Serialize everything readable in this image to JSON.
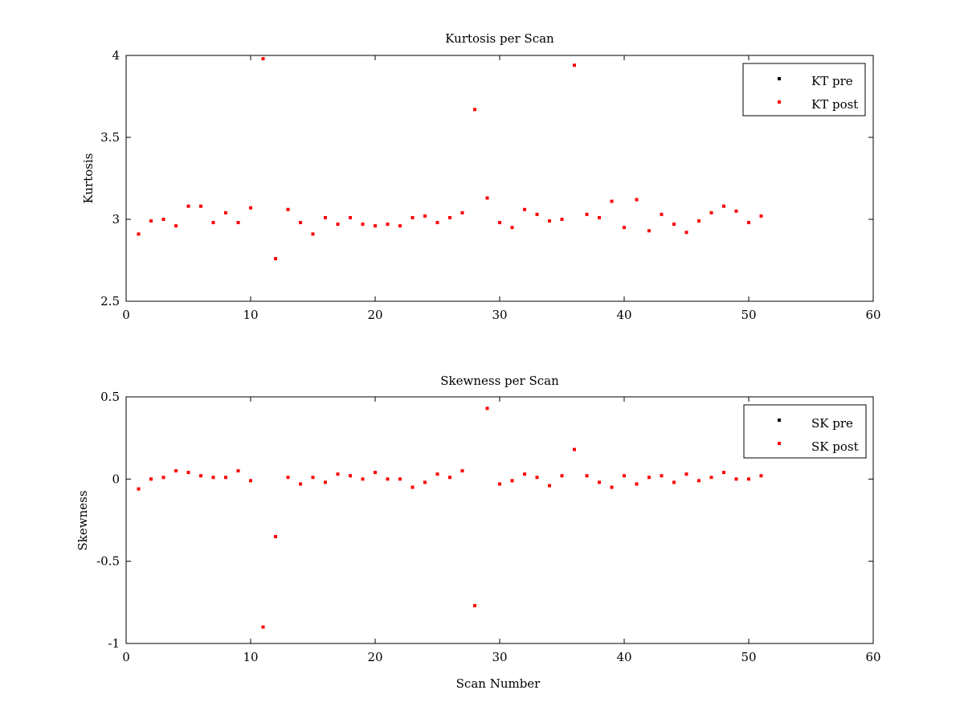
{
  "chart_data": [
    {
      "type": "scatter",
      "title": "Kurtosis per Scan",
      "xlabel": "",
      "ylabel": "Kurtosis",
      "xlim": [
        0,
        60
      ],
      "ylim": [
        2.5,
        4
      ],
      "xticks": [
        0,
        10,
        20,
        30,
        40,
        50,
        60
      ],
      "yticks": [
        2.5,
        3,
        3.5,
        4
      ],
      "xtick_labels": [
        "0",
        "10",
        "20",
        "30",
        "40",
        "50",
        "60"
      ],
      "ytick_labels": [
        "2.5",
        "3",
        "3.5",
        "4"
      ],
      "grid": false,
      "legend_position": "top-right",
      "series": [
        {
          "name": "KT pre",
          "color": "#000000",
          "x": [],
          "y": []
        },
        {
          "name": "KT post",
          "color": "#ff0000",
          "x": [
            1,
            2,
            3,
            4,
            5,
            6,
            7,
            8,
            9,
            10,
            11,
            12,
            13,
            14,
            15,
            16,
            17,
            18,
            19,
            20,
            21,
            22,
            23,
            24,
            25,
            26,
            27,
            28,
            29,
            30,
            31,
            32,
            33,
            34,
            35,
            36,
            37,
            38,
            39,
            40,
            41,
            42,
            43,
            44,
            45,
            46,
            47,
            48,
            49,
            50,
            51
          ],
          "y": [
            2.91,
            2.99,
            3.0,
            2.96,
            3.08,
            3.08,
            2.98,
            3.04,
            2.98,
            3.07,
            3.98,
            2.76,
            3.06,
            2.98,
            2.91,
            3.01,
            2.97,
            3.01,
            2.97,
            2.96,
            2.97,
            2.96,
            3.01,
            3.02,
            2.98,
            3.01,
            3.04,
            3.67,
            3.13,
            2.98,
            2.95,
            3.06,
            3.03,
            2.99,
            3.0,
            3.94,
            3.03,
            3.01,
            3.11,
            2.95,
            3.12,
            2.93,
            3.03,
            2.97,
            2.92,
            2.99,
            3.04,
            3.08,
            3.05,
            2.98,
            3.02
          ]
        }
      ]
    },
    {
      "type": "scatter",
      "title": "Skewness per Scan",
      "xlabel": "Scan Number",
      "ylabel": "Skewness",
      "xlim": [
        0,
        60
      ],
      "ylim": [
        -1,
        0.5
      ],
      "xticks": [
        0,
        10,
        20,
        30,
        40,
        50,
        60
      ],
      "yticks": [
        -1,
        -0.5,
        0,
        0.5
      ],
      "xtick_labels": [
        "0",
        "10",
        "20",
        "30",
        "40",
        "50",
        "60"
      ],
      "ytick_labels": [
        "-1",
        "-0.5",
        "0",
        "0.5"
      ],
      "grid": false,
      "legend_position": "top-right",
      "series": [
        {
          "name": "SK pre",
          "color": "#000000",
          "x": [],
          "y": []
        },
        {
          "name": "SK post",
          "color": "#ff0000",
          "x": [
            1,
            2,
            3,
            4,
            5,
            6,
            7,
            8,
            9,
            10,
            11,
            12,
            13,
            14,
            15,
            16,
            17,
            18,
            19,
            20,
            21,
            22,
            23,
            24,
            25,
            26,
            27,
            28,
            29,
            30,
            31,
            32,
            33,
            34,
            35,
            36,
            37,
            38,
            39,
            40,
            41,
            42,
            43,
            44,
            45,
            46,
            47,
            48,
            49,
            50,
            51
          ],
          "y": [
            -0.06,
            0.0,
            0.01,
            0.05,
            0.04,
            0.02,
            0.01,
            0.01,
            0.05,
            -0.01,
            -0.9,
            -0.35,
            0.01,
            -0.03,
            0.01,
            -0.02,
            0.03,
            0.02,
            0.0,
            0.04,
            0.0,
            0.0,
            -0.05,
            -0.02,
            0.03,
            0.01,
            0.05,
            -0.77,
            0.43,
            -0.03,
            -0.01,
            0.03,
            0.01,
            -0.04,
            0.02,
            0.18,
            0.02,
            -0.02,
            -0.05,
            0.02,
            -0.03,
            0.01,
            0.02,
            -0.02,
            0.03,
            -0.01,
            0.01,
            0.04,
            0.0,
            0.0,
            0.02
          ]
        }
      ]
    }
  ]
}
